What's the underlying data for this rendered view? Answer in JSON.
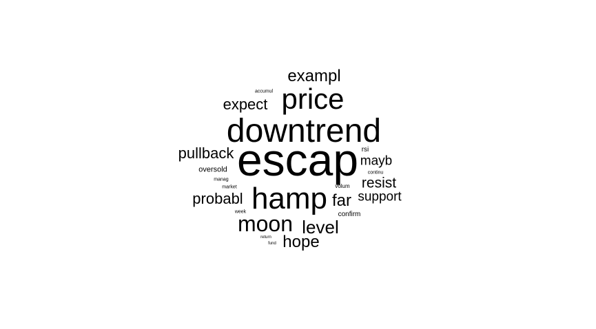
{
  "words": [
    {
      "text": "escap",
      "weight": 66
    },
    {
      "text": "downtrend",
      "weight": 48
    },
    {
      "text": "hamp",
      "weight": 44
    },
    {
      "text": "price",
      "weight": 42
    },
    {
      "text": "moon",
      "weight": 32
    },
    {
      "text": "level",
      "weight": 26
    },
    {
      "text": "exampl",
      "weight": 24
    },
    {
      "text": "far",
      "weight": 24
    },
    {
      "text": "hope",
      "weight": 24
    },
    {
      "text": "expect",
      "weight": 22
    },
    {
      "text": "probabl",
      "weight": 22
    },
    {
      "text": "pullback",
      "weight": 22
    },
    {
      "text": "resist",
      "weight": 21
    },
    {
      "text": "mayb",
      "weight": 19
    },
    {
      "text": "support",
      "weight": 19
    },
    {
      "text": "oversold",
      "weight": 11
    },
    {
      "text": "rsi",
      "weight": 10
    },
    {
      "text": "confirm",
      "weight": 10
    },
    {
      "text": "volum",
      "weight": 8
    },
    {
      "text": "manag",
      "weight": 7
    },
    {
      "text": "accumul",
      "weight": 7
    },
    {
      "text": "continu",
      "weight": 7
    },
    {
      "text": "market",
      "weight": 7
    },
    {
      "text": "week",
      "weight": 7
    },
    {
      "text": "return",
      "weight": 6
    },
    {
      "text": "fund",
      "weight": 6
    }
  ]
}
